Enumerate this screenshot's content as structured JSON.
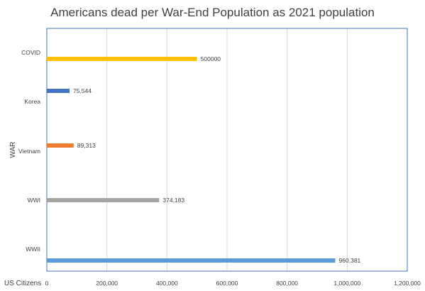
{
  "chart_data": {
    "type": "bar",
    "orientation": "horizontal",
    "title": "Americans dead per War-End Population as 2021 population",
    "xlabel": "US Citizens",
    "ylabel": "WAR",
    "categories": [
      "COVID",
      "Korea",
      "Vietnam",
      "WWI",
      "WWII"
    ],
    "values": [
      500000,
      75544,
      89313,
      374183,
      960381
    ],
    "data_labels": [
      "500000",
      "75,544",
      "89,313",
      "374,183",
      "960,381"
    ],
    "colors": [
      "#FFC000",
      "#4472C4",
      "#ED7D31",
      "#A5A5A5",
      "#5B9BD5"
    ],
    "xlim": [
      0,
      1200000
    ],
    "xticks": [
      0,
      200000,
      400000,
      600000,
      800000,
      1000000,
      1200000
    ],
    "xtick_labels": [
      "0",
      "200,000",
      "400,000",
      "600,000",
      "800,000",
      "1,000,000",
      "1,200,000"
    ],
    "grid": "vertical"
  }
}
